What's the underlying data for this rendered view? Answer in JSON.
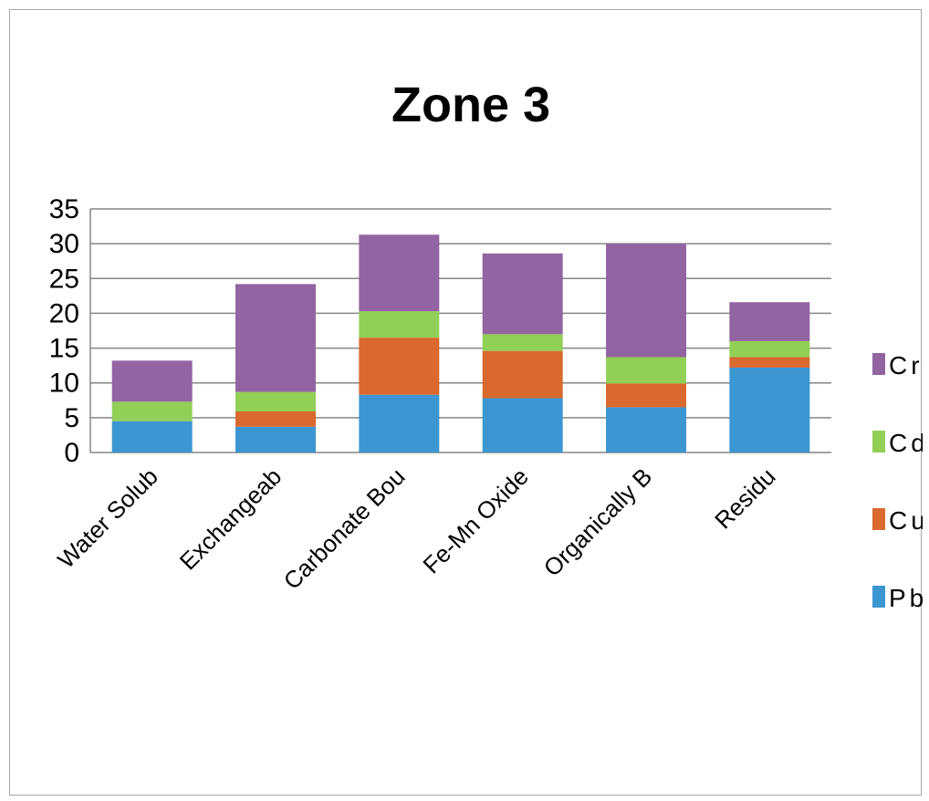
{
  "chart_data": {
    "type": "bar",
    "stacked": true,
    "title": "Zone 3",
    "xlabel": "",
    "ylabel": "",
    "ylim": [
      0,
      35
    ],
    "yticks": [
      0,
      5,
      10,
      15,
      20,
      25,
      30,
      35
    ],
    "grid": true,
    "legend_position": "right",
    "categories": [
      "Water Solub",
      "Exchangeab",
      "Carbonate Bou",
      "Fe-Mn Oxide",
      "Organically B",
      "Residu"
    ],
    "series": [
      {
        "name": "Pb",
        "color": "#3b96d1",
        "values": [
          4.5,
          3.7,
          8.3,
          7.8,
          6.5,
          12.2
        ]
      },
      {
        "name": "Cu",
        "color": "#d9692e",
        "values": [
          0.0,
          2.2,
          8.2,
          6.8,
          3.4,
          1.5
        ]
      },
      {
        "name": "Cd",
        "color": "#92cf57",
        "values": [
          2.8,
          2.8,
          3.8,
          2.4,
          3.8,
          2.3
        ]
      },
      {
        "name": "Cr",
        "color": "#9364a2",
        "values": [
          5.9,
          15.5,
          11.0,
          11.6,
          16.3,
          5.6
        ]
      }
    ]
  }
}
